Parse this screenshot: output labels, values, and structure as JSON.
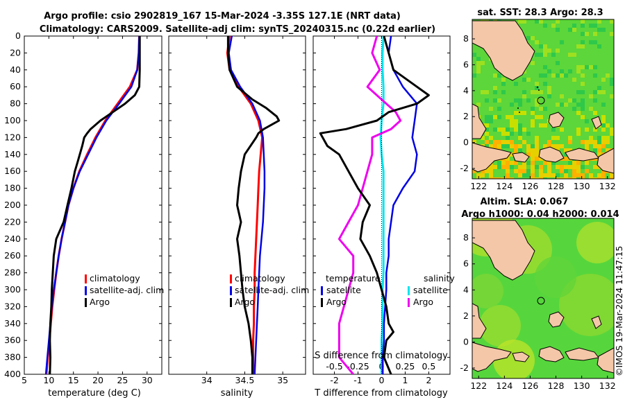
{
  "figure": {
    "title_line1": "Argo profile: csio 2902819_167 15-Mar-2024 -3.35S 127.1E (NRT data)",
    "title_line2": "Climatology: CARS2009. Satellite-adj clim: synTS_20240315.nc (0.22d earlier)",
    "footer": "©IMOS 19-Mar-2024 11:47:15"
  },
  "colors": {
    "climatology": "#ff0000",
    "satellite": "#0000e6",
    "argo": "#000000",
    "sal_satellite": "#00e5ee",
    "sal_argo": "#ee00ee",
    "land": "#f4c7a8"
  },
  "maps": {
    "sst": {
      "title": "sat. SST: 28.3 Argo: 28.3",
      "xticks": [
        "122",
        "124",
        "126",
        "128",
        "130",
        "132"
      ],
      "yticks": [
        "8",
        "6",
        "4",
        "2",
        "0",
        "-2"
      ]
    },
    "sla": {
      "title_line1": "Altim. SLA: 0.067",
      "title_line2": "Argo h1000: 0.04 h2000: 0.014",
      "xticks": [
        "122",
        "124",
        "126",
        "128",
        "130",
        "132"
      ],
      "yticks": [
        "8",
        "6",
        "4",
        "2",
        "0",
        "-2"
      ]
    }
  },
  "chart_data": [
    {
      "type": "line",
      "name": "temperature",
      "xlabel": "temperature (deg C)",
      "ylabel": "",
      "xlim": [
        5,
        33
      ],
      "ylim": [
        400,
        0
      ],
      "xticks": [
        5,
        10,
        15,
        20,
        25,
        30
      ],
      "yticks": [
        0,
        20,
        40,
        60,
        80,
        100,
        120,
        140,
        160,
        180,
        200,
        220,
        240,
        260,
        280,
        300,
        320,
        340,
        360,
        380,
        400
      ],
      "legend": [
        "climatology",
        "satellite-adj. clim",
        "Argo"
      ],
      "series": [
        {
          "name": "climatology",
          "depth": [
            0,
            20,
            40,
            60,
            80,
            100,
            120,
            140,
            160,
            180,
            200,
            220,
            240,
            260,
            280,
            300,
            320,
            340,
            360,
            380,
            400
          ],
          "values": [
            28.4,
            28.3,
            28.0,
            26.5,
            24.0,
            21.5,
            19.5,
            17.8,
            16.2,
            15.0,
            14.0,
            13.3,
            12.6,
            12.0,
            11.5,
            11.1,
            10.7,
            10.4,
            10.1,
            9.8,
            9.5
          ]
        },
        {
          "name": "satellite-adj. clim",
          "depth": [
            0,
            20,
            40,
            60,
            80,
            100,
            120,
            140,
            160,
            180,
            200,
            220,
            240,
            260,
            280,
            300,
            320,
            340,
            360,
            380,
            400
          ],
          "values": [
            28.4,
            28.3,
            28.0,
            26.8,
            24.3,
            21.7,
            19.7,
            18.0,
            16.3,
            15.0,
            14.0,
            13.3,
            12.6,
            12.0,
            11.5,
            11.0,
            10.6,
            10.3,
            10.0,
            9.7,
            9.4
          ]
        },
        {
          "name": "Argo",
          "depth": [
            0,
            20,
            40,
            60,
            70,
            80,
            90,
            100,
            110,
            115,
            120,
            130,
            140,
            150,
            160,
            180,
            200,
            220,
            240,
            260,
            280,
            300,
            320,
            340,
            360,
            380,
            400
          ],
          "values": [
            28.5,
            28.5,
            28.5,
            28.4,
            27.5,
            25.5,
            23.0,
            20.5,
            18.5,
            17.8,
            17.2,
            16.8,
            16.3,
            15.8,
            15.3,
            14.6,
            13.8,
            13.0,
            11.5,
            11.0,
            10.8,
            10.6,
            10.5,
            10.3,
            10.2,
            10.3,
            10.2
          ]
        }
      ]
    },
    {
      "type": "line",
      "name": "salinity",
      "xlabel": "salinity",
      "xlim": [
        33.5,
        35.3
      ],
      "ylim": [
        400,
        0
      ],
      "xticks": [
        34,
        34.5,
        35
      ],
      "legend": [
        "climatology",
        "satellite-adj. clim",
        "Argo"
      ],
      "series": [
        {
          "name": "climatology",
          "depth": [
            0,
            20,
            40,
            60,
            80,
            100,
            120,
            140,
            160,
            180,
            200,
            220,
            240,
            260,
            280,
            300,
            320,
            340,
            360,
            380,
            400
          ],
          "values": [
            34.3,
            34.27,
            34.3,
            34.42,
            34.58,
            34.68,
            34.73,
            34.71,
            34.69,
            34.68,
            34.67,
            34.66,
            34.65,
            34.64,
            34.63,
            34.63,
            34.62,
            34.62,
            34.61,
            34.61,
            34.61
          ]
        },
        {
          "name": "satellite-adj. clim",
          "depth": [
            0,
            20,
            40,
            60,
            80,
            100,
            120,
            140,
            160,
            180,
            200,
            220,
            240,
            260,
            280,
            300,
            320,
            340,
            360,
            380,
            400
          ],
          "values": [
            34.33,
            34.29,
            34.32,
            34.44,
            34.6,
            34.7,
            34.74,
            34.75,
            34.76,
            34.76,
            34.75,
            34.74,
            34.72,
            34.7,
            34.69,
            34.68,
            34.67,
            34.66,
            34.65,
            34.64,
            34.63
          ]
        },
        {
          "name": "Argo",
          "depth": [
            0,
            20,
            40,
            60,
            75,
            85,
            95,
            100,
            105,
            110,
            115,
            120,
            140,
            160,
            180,
            200,
            220,
            240,
            260,
            280,
            300,
            320,
            340,
            360,
            380,
            400
          ],
          "values": [
            34.28,
            34.28,
            34.3,
            34.4,
            34.6,
            34.78,
            34.92,
            34.95,
            34.85,
            34.75,
            34.68,
            34.65,
            34.5,
            34.45,
            34.42,
            34.4,
            34.45,
            34.4,
            34.43,
            34.45,
            34.47,
            34.5,
            34.55,
            34.58,
            34.6,
            34.6
          ]
        }
      ]
    },
    {
      "type": "line",
      "name": "differences",
      "xlabel": "T difference from climatology",
      "xlabel_top": "S difference from climatology",
      "xlim": [
        -2.9,
        2.9
      ],
      "ylim": [
        400,
        0
      ],
      "xticks": [
        -2,
        -1,
        0,
        1,
        2
      ],
      "sal_xticks": [
        "-0.5",
        "-0.25",
        "0",
        "0.25",
        "0.5"
      ],
      "legend_temperature": {
        "title": "temperature",
        "items": [
          "satellite",
          "Argo"
        ]
      },
      "legend_salinity": {
        "title": "salinity",
        "items": [
          "satellite",
          "Argo"
        ]
      },
      "series": [
        {
          "name": "temperature satellite",
          "depth": [
            0,
            20,
            40,
            60,
            80,
            100,
            120,
            140,
            160,
            180,
            200,
            220,
            240,
            260,
            280,
            300,
            320,
            340,
            360,
            380,
            400
          ],
          "values": [
            0.4,
            0.3,
            0.5,
            0.9,
            1.5,
            1.4,
            1.3,
            1.5,
            1.4,
            0.9,
            0.5,
            0.4,
            0.3,
            0.3,
            0.2,
            0.2,
            0.15,
            0.1,
            0.1,
            0.05,
            0.05
          ]
        },
        {
          "name": "temperature Argo",
          "depth": [
            0,
            20,
            40,
            60,
            70,
            80,
            90,
            100,
            110,
            115,
            120,
            130,
            140,
            160,
            180,
            200,
            220,
            240,
            260,
            280,
            300,
            320,
            340,
            350,
            360,
            380,
            400
          ],
          "values": [
            0.1,
            0.3,
            0.5,
            1.5,
            2.0,
            1.5,
            0.3,
            -0.2,
            -1.5,
            -2.6,
            -2.5,
            -2.3,
            -1.8,
            -1.4,
            -1.0,
            -0.5,
            -0.8,
            -0.9,
            -0.5,
            -0.2,
            0.0,
            0.2,
            0.3,
            0.5,
            0.2,
            0.1,
            0.4
          ]
        },
        {
          "name": "salinity satellite",
          "depth": [
            0,
            20,
            40,
            60,
            80,
            100,
            120,
            140,
            160,
            180,
            200,
            220,
            240,
            260,
            280,
            300,
            320,
            340,
            360,
            380,
            400
          ],
          "values": [
            0.02,
            0.01,
            0.01,
            0.02,
            0.02,
            0.0,
            -0.01,
            0.0,
            0.02,
            0.02,
            0.02,
            0.02,
            0.02,
            0.02,
            0.02,
            0.01,
            0.01,
            0.01,
            0.0,
            0.0,
            0.0
          ]
        },
        {
          "name": "salinity Argo",
          "depth": [
            0,
            20,
            40,
            60,
            80,
            90,
            100,
            110,
            120,
            140,
            160,
            180,
            200,
            220,
            240,
            260,
            280,
            300,
            320,
            340,
            360,
            380,
            400
          ],
          "values": [
            -0.05,
            -0.1,
            -0.02,
            -0.15,
            0.05,
            0.15,
            0.2,
            0.1,
            -0.1,
            -0.1,
            -0.15,
            -0.2,
            -0.25,
            -0.35,
            -0.45,
            -0.3,
            -0.3,
            -0.35,
            -0.4,
            -0.45,
            -0.45,
            -0.45,
            -0.3
          ]
        }
      ]
    }
  ]
}
